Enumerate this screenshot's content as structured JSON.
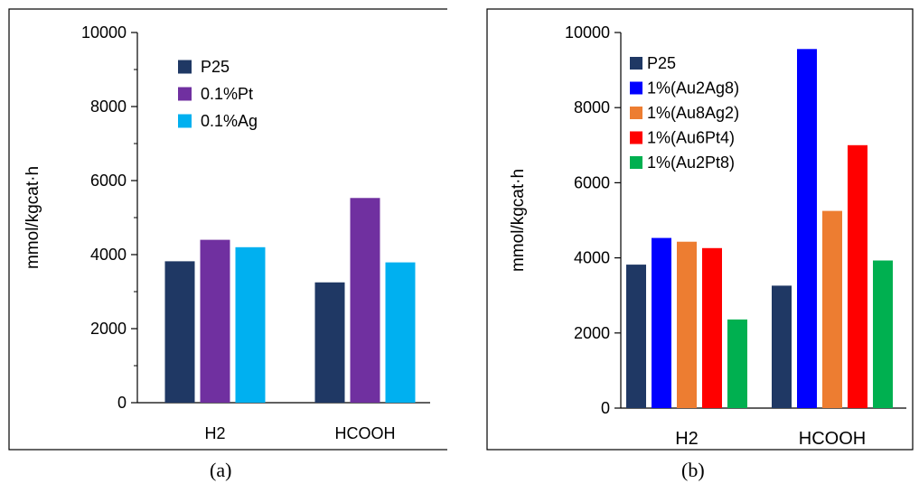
{
  "chart_data": [
    {
      "type": "bar",
      "panel_label": "a",
      "categories": [
        "H2",
        "HCOOH"
      ],
      "series": [
        {
          "name": "P25",
          "values": [
            3820,
            3250
          ],
          "color": "#1f3864"
        },
        {
          "name": "0.1%Pt",
          "values": [
            4400,
            5530
          ],
          "color": "#7030a0"
        },
        {
          "name": "0.1%Ag",
          "values": [
            4200,
            3790
          ],
          "color": "#00b0f0"
        }
      ],
      "ylabel": "mmol/kgcat·h",
      "ylim": [
        0,
        10000
      ],
      "yticks": [
        "0",
        "2000",
        "4000",
        "6000",
        "8000",
        "10000"
      ],
      "legend_position": "top-left",
      "grid": false
    },
    {
      "type": "bar",
      "panel_label": "b",
      "categories": [
        "H2",
        "HCOOH"
      ],
      "series": [
        {
          "name": "P25",
          "values": [
            3820,
            3260
          ],
          "color": "#1f3864"
        },
        {
          "name": "1%(Au2Ag8)",
          "values": [
            4530,
            9560
          ],
          "color": "#0000ff"
        },
        {
          "name": "1%(Au8Ag2)",
          "values": [
            4430,
            5250
          ],
          "color": "#ed7d31"
        },
        {
          "name": "1%(Au6Pt4)",
          "values": [
            4260,
            7000
          ],
          "color": "#ff0000"
        },
        {
          "name": "1%(Au2Pt8)",
          "values": [
            2360,
            3930
          ],
          "color": "#00b050"
        }
      ],
      "ylabel": "mmol/kgcat·h",
      "ylim": [
        0,
        10000
      ],
      "yticks": [
        "0",
        "2000",
        "4000",
        "6000",
        "8000",
        "10000"
      ],
      "legend_position": "top-left",
      "grid": false
    }
  ],
  "captions": {
    "a": "(a)",
    "b": "(b)"
  }
}
